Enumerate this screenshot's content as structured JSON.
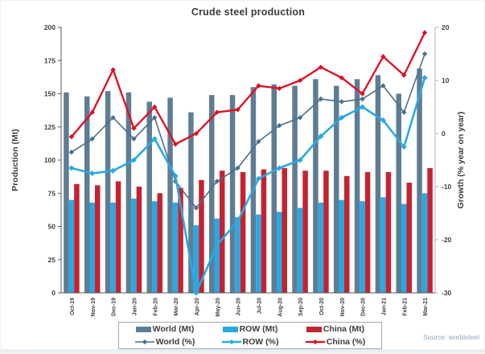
{
  "title": "Crude steel production",
  "source_note": "Source: worldsteel",
  "chart_data": {
    "type": "bar+line",
    "categories": [
      "Oct-19",
      "Nov-19",
      "Dec-19",
      "Jan-20",
      "Feb-20",
      "Mar-20",
      "Apr-20",
      "May-20",
      "Jun-20",
      "Jul-20",
      "Aug-20",
      "Sep-20",
      "Oct-20",
      "Nov-20",
      "Dec-20",
      "Jan-21",
      "Feb-21",
      "Mar-21"
    ],
    "left_axis": {
      "label": "Production (Mt)",
      "min": 0,
      "max": 200,
      "ticks": [
        0,
        25,
        50,
        75,
        100,
        125,
        150,
        175,
        200
      ]
    },
    "right_axis": {
      "label": "Growth (% year on year)",
      "min": -30,
      "max": 20,
      "ticks": [
        -30,
        -20,
        -10,
        0,
        10,
        20
      ]
    },
    "grid": "off",
    "legend_position": "bottom-box",
    "bar_series": [
      {
        "name": "World (Mt)",
        "color": "#5e7d95",
        "values": [
          151,
          148,
          152,
          151,
          144,
          147,
          136,
          149,
          149,
          155,
          157,
          156,
          161,
          156,
          161,
          164,
          150,
          169
        ]
      },
      {
        "name": "ROW (Mt)",
        "color": "#29a9e1",
        "values": [
          70,
          68,
          68,
          71,
          69,
          68,
          51,
          56,
          57,
          59,
          61,
          64,
          68,
          70,
          69,
          72,
          67,
          75
        ]
      },
      {
        "name": "China (Mt)",
        "color": "#c52231",
        "values": [
          82,
          81,
          84,
          80,
          75,
          79,
          85,
          92,
          91,
          93,
          94,
          92,
          92,
          88,
          91,
          91,
          83,
          94
        ]
      }
    ],
    "line_series": [
      {
        "name": "World (%)",
        "color": "#4c7089",
        "width": 1.6,
        "marker": 4.5,
        "values": [
          -3.5,
          -1,
          3,
          -1,
          3,
          -9,
          -14,
          -9,
          -6.5,
          -1.5,
          1.5,
          3,
          6.5,
          6,
          6.5,
          9,
          4,
          15
        ]
      },
      {
        "name": "ROW (%)",
        "color": "#29a9e1",
        "width": 2.6,
        "marker": 5,
        "values": [
          -6.5,
          -7.5,
          -7,
          -5,
          -1,
          -8,
          -30,
          -21,
          -16.5,
          -8.5,
          -6.5,
          -5,
          -0.5,
          3,
          5,
          2.5,
          -2.5,
          10.5
        ]
      },
      {
        "name": "China (%)",
        "color": "#e30b1e",
        "width": 2.3,
        "marker": 4.5,
        "values": [
          -0.6,
          4,
          12,
          1,
          5,
          -2,
          0,
          4,
          4.5,
          9,
          8.5,
          10,
          12.5,
          10.5,
          7.5,
          14.5,
          11,
          19
        ]
      }
    ],
    "axis_color": "#58595b",
    "right_border_color": "#b0b3b6"
  }
}
